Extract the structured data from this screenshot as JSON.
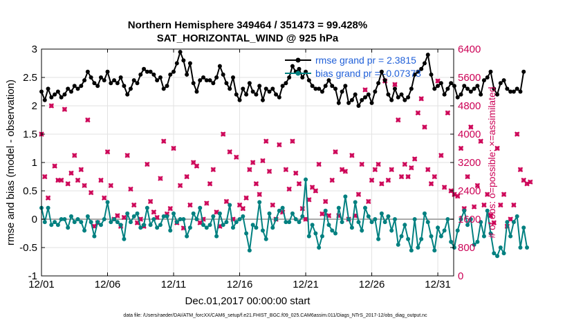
{
  "chart_data": {
    "type": "line",
    "title": "Northern Hemisphere 349464 / 351473 = 99.428%",
    "subtitle": "SAT_HORIZONTAL_WIND @ 925 hPa",
    "xlabel": "Dec.01,2017 00:00:00 start",
    "ylabel": "rmse and bias (model - observation)",
    "ylabel_right": "# of obs: o=possible; ×=assimilated",
    "footnote": "data file: /Users/raeder/DAI/ATM_forcXX/CAM6_setup/f.e21.FHIST_BGC.f09_025.CAM6assim.011/Diags_NTrS_2017-12/obs_diag_output.nc",
    "xlim": [
      0,
      31.2
    ],
    "ylim": [
      -1,
      3
    ],
    "ylim_right": [
      0,
      6400
    ],
    "x_ticks": [
      0,
      5,
      10,
      15,
      20,
      25,
      30
    ],
    "x_tick_labels": [
      "12/01",
      "12/06",
      "12/11",
      "12/16",
      "12/21",
      "12/26",
      "12/31"
    ],
    "y_ticks": [
      -1,
      -0.5,
      0,
      0.5,
      1,
      1.5,
      2,
      2.5,
      3
    ],
    "y_tick_labels": [
      "-1",
      "-0.5",
      "0",
      "0.5",
      "1",
      "1.5",
      "2",
      "2.5",
      "3"
    ],
    "y_right_ticks": [
      0,
      800,
      1600,
      2400,
      3200,
      4000,
      4800,
      5600,
      6400
    ],
    "y_right_tick_labels": [
      "0",
      "800",
      "1600",
      "2400",
      "3200",
      "4000",
      "4800",
      "5600",
      "6400"
    ],
    "grid": true,
    "legend_position": "top-right",
    "zero_line": 0,
    "step_days": 0.25,
    "series": [
      {
        "name": "rmse grand pr = 2.3815",
        "color": "#000000",
        "marker": "circle",
        "axis": "left",
        "values": [
          2.25,
          2.1,
          2.3,
          2.15,
          2.2,
          2.25,
          2.15,
          2.2,
          2.3,
          2.25,
          2.35,
          2.3,
          2.35,
          2.45,
          2.6,
          2.5,
          2.4,
          2.35,
          2.5,
          2.45,
          2.6,
          2.4,
          2.45,
          2.4,
          2.5,
          2.35,
          2.2,
          2.3,
          2.45,
          2.4,
          2.55,
          2.65,
          2.6,
          2.6,
          2.55,
          2.45,
          2.5,
          2.3,
          2.35,
          2.55,
          2.6,
          2.75,
          2.95,
          2.8,
          2.55,
          2.75,
          2.4,
          2.25,
          2.45,
          2.5,
          2.45,
          2.45,
          2.4,
          2.5,
          2.7,
          2.55,
          2.4,
          2.3,
          2.5,
          2.2,
          2.1,
          2.3,
          2.2,
          2.4,
          2.25,
          2.2,
          2.35,
          2.1,
          2.3,
          2.25,
          2.3,
          2.2,
          2.15,
          2.35,
          2.4,
          2.5,
          2.7,
          2.6,
          2.65,
          2.5,
          2.6,
          2.45,
          2.35,
          2.3,
          2.3,
          2.25,
          2.35,
          2.45,
          2.35,
          2.3,
          2.05,
          2.25,
          2.35,
          2.05,
          2.1,
          2.2,
          2.0,
          2.1,
          2.15,
          2.2,
          2.05,
          2.25,
          2.4,
          2.6,
          2.45,
          2.2,
          2.1,
          2.3,
          2.15,
          2.2,
          2.1,
          2.15,
          2.3,
          2.55,
          2.6,
          2.65,
          2.75,
          2.9,
          2.55,
          2.3,
          2.35,
          2.4,
          2.2,
          2.3,
          2.4,
          2.35,
          2.15,
          2.2,
          2.35,
          2.3,
          2.25,
          2.3,
          2.35,
          2.2,
          2.45,
          2.5,
          2.6,
          2.3,
          2.2,
          2.4,
          2.45,
          2.3,
          2.25,
          2.25,
          2.3,
          2.25,
          2.6
        ]
      },
      {
        "name": "bias grand pr = -0.07373",
        "color": "#008080",
        "marker": "circle",
        "axis": "left",
        "values": [
          0.2,
          -0.05,
          0.2,
          -0.1,
          -0.05,
          -0.1,
          0.0,
          0.0,
          -0.15,
          0.05,
          -0.05,
          0.0,
          -0.05,
          -0.2,
          0.05,
          -0.05,
          -0.3,
          -0.05,
          -0.1,
          0.0,
          0.3,
          -0.05,
          0.0,
          -0.05,
          -0.1,
          -0.35,
          0.1,
          -0.05,
          0.05,
          0.1,
          -0.15,
          -0.1,
          0.2,
          -0.1,
          0.0,
          -0.15,
          -0.1,
          0.05,
          0.05,
          -0.2,
          0.1,
          -0.05,
          0.0,
          0.0,
          -0.3,
          -0.15,
          0.1,
          0.0,
          0.2,
          -0.1,
          -0.15,
          -0.1,
          0.05,
          -0.3,
          0.1,
          -0.1,
          -0.05,
          0.25,
          -0.15,
          -0.05,
          0.0,
          0.05,
          -0.25,
          -0.55,
          -0.1,
          -0.15,
          0.3,
          -0.2,
          -0.35,
          0.1,
          -0.15,
          0.0,
          0.15,
          0.2,
          -0.05,
          -0.05,
          0.1,
          0.0,
          -0.05,
          0.05,
          0.7,
          -0.3,
          -0.1,
          -0.25,
          -0.5,
          -0.3,
          0.15,
          -0.1,
          -0.2,
          -0.25,
          0.2,
          -0.05,
          0.4,
          0.0,
          -0.15,
          0.3,
          -0.05,
          -0.2,
          0.2,
          0.05,
          -0.05,
          0.0,
          -0.35,
          0.1,
          -0.05,
          0.05,
          -0.2,
          0.0,
          -0.45,
          -0.3,
          -0.1,
          -0.35,
          -0.55,
          0.0,
          -0.5,
          -0.35,
          0.1,
          -0.05,
          -0.3,
          -0.55,
          -0.15,
          -0.3,
          -0.2,
          0.0,
          -0.4,
          -0.5,
          -0.2,
          0.0,
          0.15,
          -0.1,
          0.0,
          -0.45,
          -0.4,
          -0.05,
          -0.3,
          0.15,
          -0.25,
          -0.6,
          -0.65,
          -0.5,
          -0.6,
          -0.05,
          -0.3,
          -0.05,
          0.05,
          -0.5,
          -0.15,
          -0.5
        ]
      },
      {
        "name": "obs assimilated",
        "color": "#cc0055",
        "marker": "x",
        "axis": "right",
        "values": [
          4000,
          2800,
          2200,
          4800,
          3100,
          2700,
          2700,
          4700,
          2600,
          2900,
          3400,
          2700,
          3000,
          2550,
          4400,
          2350,
          1400,
          1500,
          2700,
          2200,
          3500,
          2550,
          1600,
          1700,
          1400,
          1650,
          3400,
          2450,
          2000,
          1500,
          1600,
          1400,
          3150,
          2100,
          1800,
          1650,
          2750,
          3800,
          1750,
          1900,
          3600,
          1500,
          2550,
          1350,
          2800,
          2000,
          3200,
          3100,
          1500,
          1600,
          2050,
          2600,
          3000,
          1800,
          1400,
          4000,
          2100,
          3500,
          1600,
          3350,
          2000,
          1900,
          2200,
          3000,
          3200,
          2600,
          2300,
          3250,
          3800,
          2950,
          2000,
          1600,
          3700,
          1800,
          3000,
          2450,
          3800,
          2900,
          2600,
          1900,
          1600,
          2150,
          2500,
          2400,
          3150,
          1750,
          2100,
          1700,
          2700,
          3500,
          1700,
          3000,
          2950,
          1600,
          3400,
          1700,
          2300,
          3150,
          5250,
          2100,
          2700,
          3000,
          3150,
          2600,
          5500,
          2700,
          3000,
          5400,
          4400,
          2800,
          3150,
          2800,
          3050,
          3300,
          4600,
          5000,
          4200,
          3000,
          2600,
          2800,
          5500,
          3400,
          2500,
          4600,
          2400,
          2300,
          2250,
          3600,
          1900,
          2800,
          4200,
          1950,
          2550,
          3800,
          2000,
          2300,
          1700,
          1500,
          3600,
          2000,
          2300,
          1400,
          1600,
          2000,
          4000,
          3000,
          2700,
          2600,
          2650
        ]
      },
      {
        "name": "obs possible",
        "color": "#cc0055",
        "marker": "circle-open",
        "axis": "right",
        "values": [
          4000,
          2800,
          2200,
          4800,
          3100,
          2700,
          2700,
          4700,
          2600,
          2900,
          3400,
          2700,
          3000,
          2550,
          4400,
          2350,
          1400,
          1500,
          2700,
          2200,
          3500,
          2550,
          1600,
          1700,
          1400,
          1650,
          3400,
          2450,
          2000,
          1500,
          1600,
          1400,
          3150,
          2100,
          1800,
          1650,
          2750,
          3800,
          1750,
          1900,
          3600,
          1500,
          2550,
          1350,
          2800,
          2000,
          3200,
          3100,
          1500,
          1600,
          2050,
          2600,
          3000,
          1800,
          1400,
          4000,
          2100,
          3500,
          1600,
          3350,
          2000,
          1900,
          2200,
          3000,
          3200,
          2600,
          2300,
          3250,
          3800,
          2950,
          2000,
          1600,
          3700,
          1800,
          3000,
          2450,
          3800,
          2900,
          2600,
          1900,
          1600,
          2150,
          2500,
          2400,
          3150,
          1750,
          2100,
          1700,
          2700,
          3500,
          1700,
          3000,
          2950,
          1600,
          3400,
          1700,
          2300,
          3150,
          5250,
          2100,
          2700,
          3000,
          3150,
          2600,
          5500,
          2700,
          3000,
          5400,
          4400,
          2800,
          3150,
          2800,
          3050,
          3300,
          4600,
          5000,
          4200,
          3000,
          2600,
          2800,
          5500,
          3400,
          2500,
          4600,
          2400,
          2300,
          2250,
          3600,
          1900,
          2800,
          4200,
          1950,
          2550,
          3800,
          2000,
          2300,
          1700,
          1500,
          3600,
          2000,
          2300,
          1400,
          1600,
          2000,
          4000,
          3000,
          2700,
          2600,
          2650
        ]
      }
    ]
  }
}
